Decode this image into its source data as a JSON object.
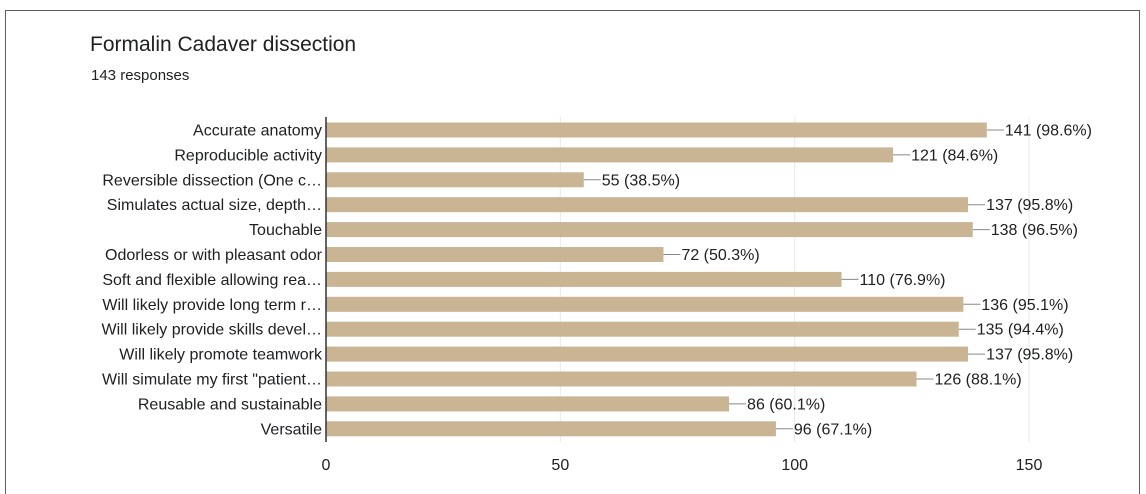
{
  "title": "Formalin Cadaver dissection",
  "subtitle": "143 responses",
  "colors": {
    "bar": "#c9b493",
    "grid": "#e8e8e8",
    "axis": "#333333",
    "text": "#202124",
    "label_line": "#888888"
  },
  "chart_data": {
    "type": "bar",
    "orientation": "horizontal",
    "categories": [
      "Accurate anatomy",
      "Reproducible activity",
      "Reversible dissection (One c…",
      "Simulates actual size, depth…",
      "Touchable",
      "Odorless or with pleasant odor",
      "Soft and flexible allowing rea…",
      "Will likely provide long term r…",
      "Will likely provide skills devel…",
      "Will likely promote teamwork",
      "Will simulate my first \"patient…",
      "Reusable and sustainable",
      "Versatile"
    ],
    "values": [
      141,
      121,
      55,
      137,
      138,
      72,
      110,
      136,
      135,
      137,
      126,
      86,
      96
    ],
    "data_labels": [
      "141 (98.6%)",
      "121 (84.6%)",
      "55 (38.5%)",
      "137 (95.8%)",
      "138 (96.5%)",
      "72 (50.3%)",
      "110 (76.9%)",
      "136 (95.1%)",
      "135 (94.4%)",
      "137 (95.8%)",
      "126 (88.1%)",
      "86 (60.1%)",
      "96 (67.1%)"
    ],
    "xlim": [
      0,
      150
    ],
    "x_ticks": [
      "0",
      "50",
      "100",
      "150"
    ],
    "grid": true
  }
}
